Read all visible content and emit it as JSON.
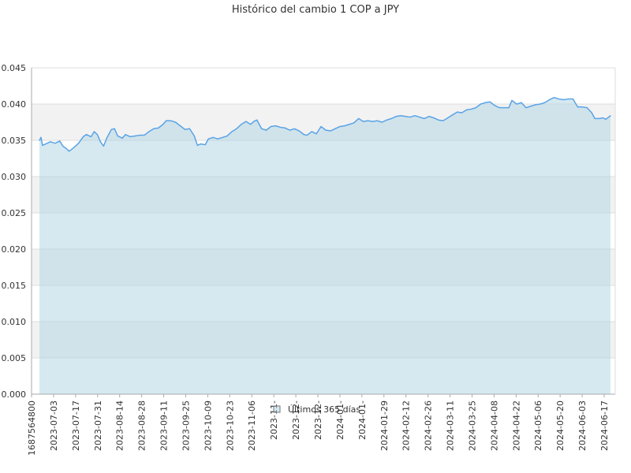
{
  "chart_data": {
    "type": "area",
    "title": "Histórico del cambio 1 COP a JPY",
    "xlabel": "",
    "ylabel": "",
    "ylim": [
      0,
      0.045
    ],
    "y_ticks": [
      "0.000",
      "0.005",
      "0.010",
      "0.015",
      "0.020",
      "0.025",
      "0.030",
      "0.035",
      "0.040",
      "0.045"
    ],
    "x_tick_labels": [
      "1687564800",
      "2023-07-03",
      "2023-07-17",
      "2023-07-31",
      "2023-08-14",
      "2023-08-28",
      "2023-09-11",
      "2023-09-25",
      "2023-10-09",
      "2023-10-23",
      "2023-11-06",
      "2023-11-",
      "2023-12-",
      "2023-12-",
      "2024-01-",
      "2024-01-",
      "2024-01-29",
      "2024-02-12",
      "2024-02-26",
      "2024-03-11",
      "2024-03-25",
      "2024-04-08",
      "2024-04-22",
      "2024-05-06",
      "2024-05-20",
      "2024-06-03",
      "2024-06-17"
    ],
    "x_start": "2023-06-24",
    "x_end": "2024-06-23",
    "legend": "bottom-center",
    "grid": true,
    "series": [
      {
        "name": "Últimos 365 días",
        "points": [
          [
            "2023-06-24",
            0.035
          ],
          [
            "2023-06-25",
            0.0354
          ],
          [
            "2023-06-26",
            0.0343
          ],
          [
            "2023-06-28",
            0.0345
          ],
          [
            "2023-07-01",
            0.0348
          ],
          [
            "2023-07-04",
            0.0346
          ],
          [
            "2023-07-07",
            0.0349
          ],
          [
            "2023-07-09",
            0.0342
          ],
          [
            "2023-07-11",
            0.0339
          ],
          [
            "2023-07-13",
            0.0335
          ],
          [
            "2023-07-16",
            0.034
          ],
          [
            "2023-07-19",
            0.0346
          ],
          [
            "2023-07-22",
            0.0355
          ],
          [
            "2023-07-24",
            0.0358
          ],
          [
            "2023-07-27",
            0.0355
          ],
          [
            "2023-07-29",
            0.0362
          ],
          [
            "2023-07-31",
            0.0358
          ],
          [
            "2023-08-02",
            0.0348
          ],
          [
            "2023-08-04",
            0.0342
          ],
          [
            "2023-08-06",
            0.0353
          ],
          [
            "2023-08-09",
            0.0365
          ],
          [
            "2023-08-11",
            0.0366
          ],
          [
            "2023-08-13",
            0.0356
          ],
          [
            "2023-08-16",
            0.0353
          ],
          [
            "2023-08-18",
            0.0358
          ],
          [
            "2023-08-21",
            0.0355
          ],
          [
            "2023-08-24",
            0.0356
          ],
          [
            "2023-08-27",
            0.0357
          ],
          [
            "2023-08-30",
            0.0357
          ],
          [
            "2023-09-02",
            0.0362
          ],
          [
            "2023-09-05",
            0.0366
          ],
          [
            "2023-09-08",
            0.0367
          ],
          [
            "2023-09-11",
            0.0372
          ],
          [
            "2023-09-13",
            0.0377
          ],
          [
            "2023-09-16",
            0.0377
          ],
          [
            "2023-09-19",
            0.0375
          ],
          [
            "2023-09-22",
            0.037
          ],
          [
            "2023-09-25",
            0.0365
          ],
          [
            "2023-09-28",
            0.0366
          ],
          [
            "2023-10-01",
            0.0356
          ],
          [
            "2023-10-03",
            0.0343
          ],
          [
            "2023-10-05",
            0.0345
          ],
          [
            "2023-10-08",
            0.0344
          ],
          [
            "2023-10-10",
            0.0352
          ],
          [
            "2023-10-13",
            0.0354
          ],
          [
            "2023-10-16",
            0.0352
          ],
          [
            "2023-10-19",
            0.0354
          ],
          [
            "2023-10-22",
            0.0356
          ],
          [
            "2023-10-25",
            0.0362
          ],
          [
            "2023-10-28",
            0.0366
          ],
          [
            "2023-10-31",
            0.0372
          ],
          [
            "2023-11-03",
            0.0376
          ],
          [
            "2023-11-06",
            0.0372
          ],
          [
            "2023-11-08",
            0.0376
          ],
          [
            "2023-11-10",
            0.0378
          ],
          [
            "2023-11-13",
            0.0366
          ],
          [
            "2023-11-16",
            0.0364
          ],
          [
            "2023-11-19",
            0.0369
          ],
          [
            "2023-11-22",
            0.037
          ],
          [
            "2023-11-25",
            0.0368
          ],
          [
            "2023-11-28",
            0.0367
          ],
          [
            "2023-12-01",
            0.0364
          ],
          [
            "2023-12-04",
            0.0366
          ],
          [
            "2023-12-07",
            0.0363
          ],
          [
            "2023-12-10",
            0.0358
          ],
          [
            "2023-12-12",
            0.0357
          ],
          [
            "2023-12-15",
            0.0362
          ],
          [
            "2023-12-18",
            0.0359
          ],
          [
            "2023-12-21",
            0.0369
          ],
          [
            "2023-12-24",
            0.0364
          ],
          [
            "2023-12-27",
            0.0363
          ],
          [
            "2023-12-30",
            0.0366
          ],
          [
            "2024-01-02",
            0.0369
          ],
          [
            "2024-01-05",
            0.037
          ],
          [
            "2024-01-08",
            0.0372
          ],
          [
            "2024-01-11",
            0.0374
          ],
          [
            "2024-01-14",
            0.038
          ],
          [
            "2024-01-17",
            0.0376
          ],
          [
            "2024-01-20",
            0.0377
          ],
          [
            "2024-01-23",
            0.0376
          ],
          [
            "2024-01-26",
            0.0377
          ],
          [
            "2024-01-29",
            0.0375
          ],
          [
            "2024-02-01",
            0.0378
          ],
          [
            "2024-02-04",
            0.038
          ],
          [
            "2024-02-07",
            0.0383
          ],
          [
            "2024-02-10",
            0.0384
          ],
          [
            "2024-02-13",
            0.0383
          ],
          [
            "2024-02-16",
            0.0382
          ],
          [
            "2024-02-19",
            0.0384
          ],
          [
            "2024-02-22",
            0.0382
          ],
          [
            "2024-02-25",
            0.038
          ],
          [
            "2024-02-28",
            0.0383
          ],
          [
            "2024-03-02",
            0.0381
          ],
          [
            "2024-03-05",
            0.0378
          ],
          [
            "2024-03-08",
            0.0377
          ],
          [
            "2024-03-11",
            0.0381
          ],
          [
            "2024-03-14",
            0.0385
          ],
          [
            "2024-03-17",
            0.0389
          ],
          [
            "2024-03-20",
            0.0388
          ],
          [
            "2024-03-23",
            0.0392
          ],
          [
            "2024-03-26",
            0.0393
          ],
          [
            "2024-03-29",
            0.0395
          ],
          [
            "2024-04-01",
            0.04
          ],
          [
            "2024-04-04",
            0.0402
          ],
          [
            "2024-04-07",
            0.0403
          ],
          [
            "2024-04-10",
            0.0398
          ],
          [
            "2024-04-13",
            0.0395
          ],
          [
            "2024-04-16",
            0.0395
          ],
          [
            "2024-04-19",
            0.0395
          ],
          [
            "2024-04-21",
            0.0405
          ],
          [
            "2024-04-24",
            0.04
          ],
          [
            "2024-04-27",
            0.0402
          ],
          [
            "2024-04-30",
            0.0395
          ],
          [
            "2024-05-03",
            0.0397
          ],
          [
            "2024-05-06",
            0.0399
          ],
          [
            "2024-05-09",
            0.04
          ],
          [
            "2024-05-12",
            0.0402
          ],
          [
            "2024-05-15",
            0.0406
          ],
          [
            "2024-05-18",
            0.0409
          ],
          [
            "2024-05-21",
            0.0407
          ],
          [
            "2024-05-24",
            0.0406
          ],
          [
            "2024-05-27",
            0.0407
          ],
          [
            "2024-05-30",
            0.0407
          ],
          [
            "2024-06-02",
            0.0396
          ],
          [
            "2024-06-05",
            0.0396
          ],
          [
            "2024-06-08",
            0.0395
          ],
          [
            "2024-06-11",
            0.0388
          ],
          [
            "2024-06-13",
            0.038
          ],
          [
            "2024-06-16",
            0.038
          ],
          [
            "2024-06-18",
            0.0381
          ],
          [
            "2024-06-20",
            0.0379
          ],
          [
            "2024-06-23",
            0.0384
          ]
        ]
      }
    ]
  },
  "colors": {
    "line": "#5aa3e6",
    "fill": "#aed3e3",
    "band": "#f2f2f2",
    "grid": "#dddddd",
    "axis": "#aaaaaa",
    "text": "#333333"
  }
}
